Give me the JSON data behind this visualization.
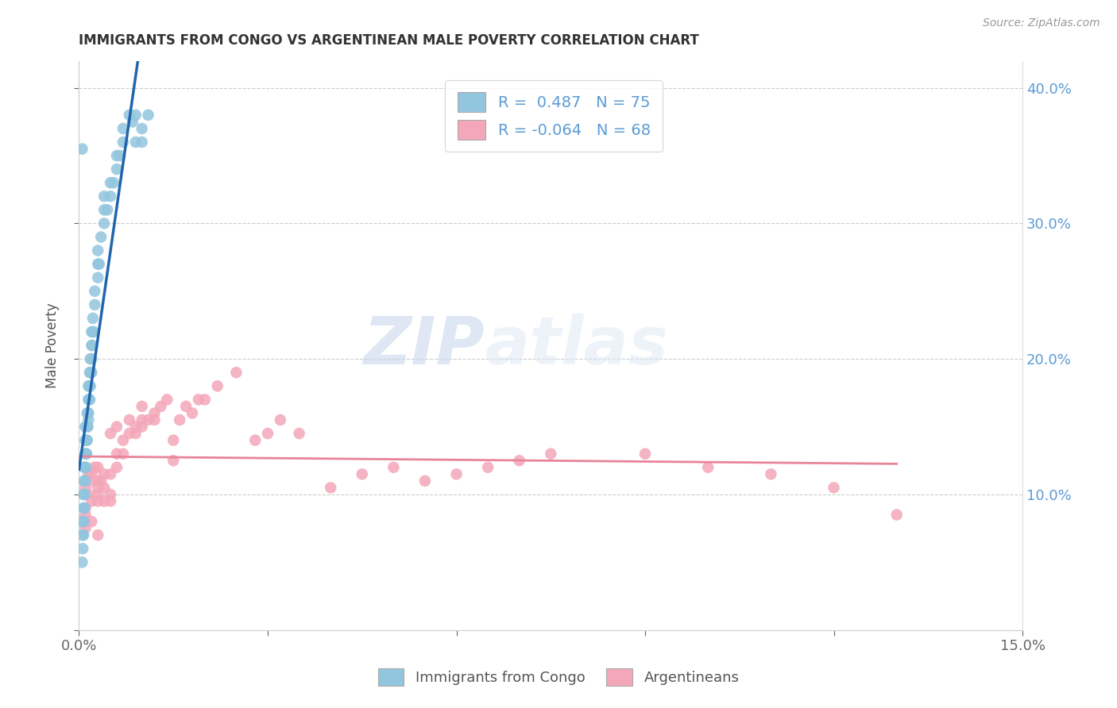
{
  "title": "IMMIGRANTS FROM CONGO VS ARGENTINEAN MALE POVERTY CORRELATION CHART",
  "source": "Source: ZipAtlas.com",
  "ylabel": "Male Poverty",
  "xlim": [
    0.0,
    0.15
  ],
  "ylim": [
    0.0,
    0.42
  ],
  "color_congo": "#92C5DE",
  "color_arg": "#F4A7B9",
  "color_congo_line": "#2166AC",
  "color_arg_line": "#E8849A",
  "watermark_zip": "ZIP",
  "watermark_atlas": "atlas",
  "legend_line1": "R =  0.487   N = 75",
  "legend_line2": "R = -0.064   N = 68",
  "congo_x": [
    0.0005,
    0.0005,
    0.0006,
    0.0007,
    0.0007,
    0.0008,
    0.0008,
    0.0008,
    0.0009,
    0.0009,
    0.001,
    0.001,
    0.001,
    0.001,
    0.001,
    0.0011,
    0.0011,
    0.0012,
    0.0012,
    0.0013,
    0.0013,
    0.0013,
    0.0014,
    0.0014,
    0.0015,
    0.0015,
    0.0015,
    0.0015,
    0.0016,
    0.0016,
    0.0017,
    0.0017,
    0.0018,
    0.0018,
    0.0018,
    0.0019,
    0.002,
    0.002,
    0.002,
    0.002,
    0.0021,
    0.0022,
    0.0022,
    0.0023,
    0.0025,
    0.0025,
    0.003,
    0.003,
    0.003,
    0.0032,
    0.0035,
    0.004,
    0.004,
    0.004,
    0.0045,
    0.005,
    0.005,
    0.0055,
    0.006,
    0.006,
    0.0065,
    0.007,
    0.007,
    0.008,
    0.0085,
    0.009,
    0.009,
    0.01,
    0.01,
    0.011,
    0.0005,
    0.0006,
    0.0007,
    0.0008,
    0.0009
  ],
  "congo_y": [
    0.05,
    0.08,
    0.07,
    0.1,
    0.09,
    0.11,
    0.1,
    0.12,
    0.1,
    0.11,
    0.11,
    0.12,
    0.13,
    0.14,
    0.15,
    0.12,
    0.13,
    0.13,
    0.14,
    0.14,
    0.15,
    0.16,
    0.15,
    0.16,
    0.155,
    0.16,
    0.17,
    0.18,
    0.17,
    0.18,
    0.17,
    0.19,
    0.18,
    0.19,
    0.2,
    0.19,
    0.19,
    0.2,
    0.21,
    0.22,
    0.21,
    0.22,
    0.23,
    0.22,
    0.24,
    0.25,
    0.26,
    0.27,
    0.28,
    0.27,
    0.29,
    0.3,
    0.31,
    0.32,
    0.31,
    0.32,
    0.33,
    0.33,
    0.34,
    0.35,
    0.35,
    0.36,
    0.37,
    0.38,
    0.375,
    0.38,
    0.36,
    0.36,
    0.37,
    0.38,
    0.355,
    0.06,
    0.07,
    0.08,
    0.09
  ],
  "arg_x": [
    0.001,
    0.001,
    0.0015,
    0.0015,
    0.002,
    0.002,
    0.002,
    0.0025,
    0.003,
    0.003,
    0.003,
    0.003,
    0.003,
    0.0035,
    0.004,
    0.004,
    0.004,
    0.005,
    0.005,
    0.005,
    0.005,
    0.006,
    0.006,
    0.006,
    0.007,
    0.007,
    0.008,
    0.008,
    0.009,
    0.009,
    0.01,
    0.01,
    0.01,
    0.011,
    0.012,
    0.012,
    0.013,
    0.014,
    0.015,
    0.015,
    0.016,
    0.017,
    0.018,
    0.019,
    0.02,
    0.022,
    0.025,
    0.028,
    0.03,
    0.032,
    0.035,
    0.04,
    0.045,
    0.05,
    0.055,
    0.06,
    0.065,
    0.07,
    0.075,
    0.09,
    0.1,
    0.11,
    0.12,
    0.13,
    0.001,
    0.001,
    0.002,
    0.003
  ],
  "arg_y": [
    0.105,
    0.09,
    0.115,
    0.1,
    0.095,
    0.115,
    0.11,
    0.12,
    0.105,
    0.095,
    0.11,
    0.12,
    0.1,
    0.11,
    0.115,
    0.095,
    0.105,
    0.115,
    0.1,
    0.095,
    0.145,
    0.13,
    0.12,
    0.15,
    0.14,
    0.13,
    0.145,
    0.155,
    0.15,
    0.145,
    0.15,
    0.155,
    0.165,
    0.155,
    0.155,
    0.16,
    0.165,
    0.17,
    0.125,
    0.14,
    0.155,
    0.165,
    0.16,
    0.17,
    0.17,
    0.18,
    0.19,
    0.14,
    0.145,
    0.155,
    0.145,
    0.105,
    0.115,
    0.12,
    0.11,
    0.115,
    0.12,
    0.125,
    0.13,
    0.13,
    0.12,
    0.115,
    0.105,
    0.085,
    0.075,
    0.085,
    0.08,
    0.07
  ]
}
